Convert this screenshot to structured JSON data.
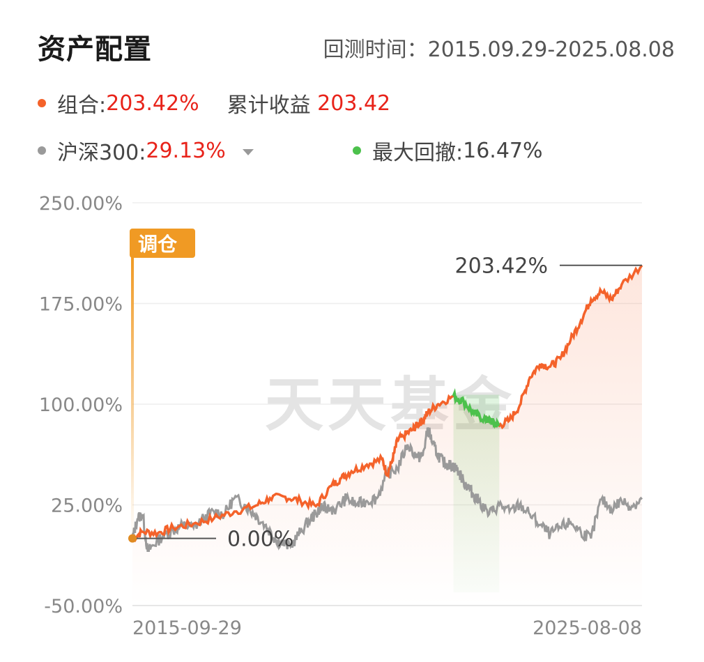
{
  "header": {
    "title": "资产配置",
    "period_label": "回测时间：",
    "period_value": "2015.09.29-2025.08.08"
  },
  "legend": {
    "portfolio_label": "组合:",
    "portfolio_value": "203.42%",
    "cumulative_label": "累计收益",
    "cumulative_value": "203.42",
    "index_label": "沪深300:",
    "index_value": "29.13%",
    "drawdown_label": "最大回撤:",
    "drawdown_value": "16.47%"
  },
  "colors": {
    "portfolio": "#f4622a",
    "index": "#9a9a9a",
    "drawdown": "#4cc14c",
    "value_red": "#e8231a",
    "rebalance_tag": "#f09a24"
  },
  "annotations": {
    "rebalance_tag": "调仓",
    "end_value": "203.42%",
    "start_value": "0.00%",
    "watermark": "天天基金"
  },
  "chart_data": {
    "type": "line",
    "yticks": [
      "250.00%",
      "175.00%",
      "100.00%",
      "25.00%",
      "-50.00%"
    ],
    "ylim": [
      -50,
      250
    ],
    "xticks": [
      "2015-09-29",
      "2025-08-08"
    ],
    "x_range": [
      "2015-09-29",
      "2025-08-08"
    ],
    "drawdown_window": {
      "start": 0.63,
      "end": 0.72
    },
    "series": [
      {
        "name": "组合",
        "x": [
          0,
          0.02,
          0.05,
          0.08,
          0.12,
          0.16,
          0.2,
          0.24,
          0.27,
          0.3,
          0.33,
          0.36,
          0.39,
          0.41,
          0.43,
          0.46,
          0.49,
          0.5,
          0.51,
          0.52,
          0.53,
          0.55,
          0.56,
          0.57,
          0.58,
          0.6,
          0.63,
          0.65,
          0.67,
          0.69,
          0.7,
          0.71,
          0.72,
          0.74,
          0.76,
          0.78,
          0.8,
          0.82,
          0.84,
          0.86,
          0.88,
          0.9,
          0.92,
          0.94,
          0.96,
          1.0
        ],
        "y": [
          0,
          5,
          4,
          8,
          11,
          15,
          20,
          24,
          30,
          31,
          28,
          24,
          39,
          45,
          50,
          55,
          59,
          48,
          58,
          73,
          76,
          81,
          85,
          88,
          94,
          100,
          106,
          102,
          93,
          89,
          88,
          86,
          84,
          88,
          99,
          120,
          130,
          128,
          134,
          148,
          162,
          178,
          184,
          178,
          189,
          203.42
        ]
      },
      {
        "name": "沪深300",
        "x": [
          0,
          0.01,
          0.02,
          0.03,
          0.04,
          0.06,
          0.08,
          0.1,
          0.12,
          0.14,
          0.16,
          0.18,
          0.2,
          0.22,
          0.24,
          0.26,
          0.28,
          0.29,
          0.31,
          0.33,
          0.35,
          0.36,
          0.37,
          0.38,
          0.4,
          0.42,
          0.44,
          0.46,
          0.48,
          0.5,
          0.52,
          0.54,
          0.56,
          0.57,
          0.58,
          0.59,
          0.6,
          0.61,
          0.62,
          0.63,
          0.64,
          0.65,
          0.66,
          0.67,
          0.68,
          0.7,
          0.72,
          0.74,
          0.76,
          0.78,
          0.8,
          0.82,
          0.84,
          0.86,
          0.88,
          0.9,
          0.92,
          0.94,
          0.96,
          0.98,
          1.0
        ],
        "y": [
          0,
          15,
          18,
          -10,
          -5,
          2,
          6,
          10,
          8,
          15,
          20,
          18,
          30,
          25,
          18,
          10,
          0,
          -3,
          -6,
          5,
          15,
          18,
          24,
          22,
          22,
          30,
          25,
          28,
          30,
          48,
          52,
          70,
          60,
          62,
          82,
          70,
          62,
          57,
          55,
          54,
          50,
          42,
          38,
          32,
          28,
          18,
          25,
          20,
          25,
          18,
          10,
          3,
          8,
          12,
          5,
          0,
          29,
          22,
          28,
          24,
          29.13
        ]
      }
    ]
  }
}
